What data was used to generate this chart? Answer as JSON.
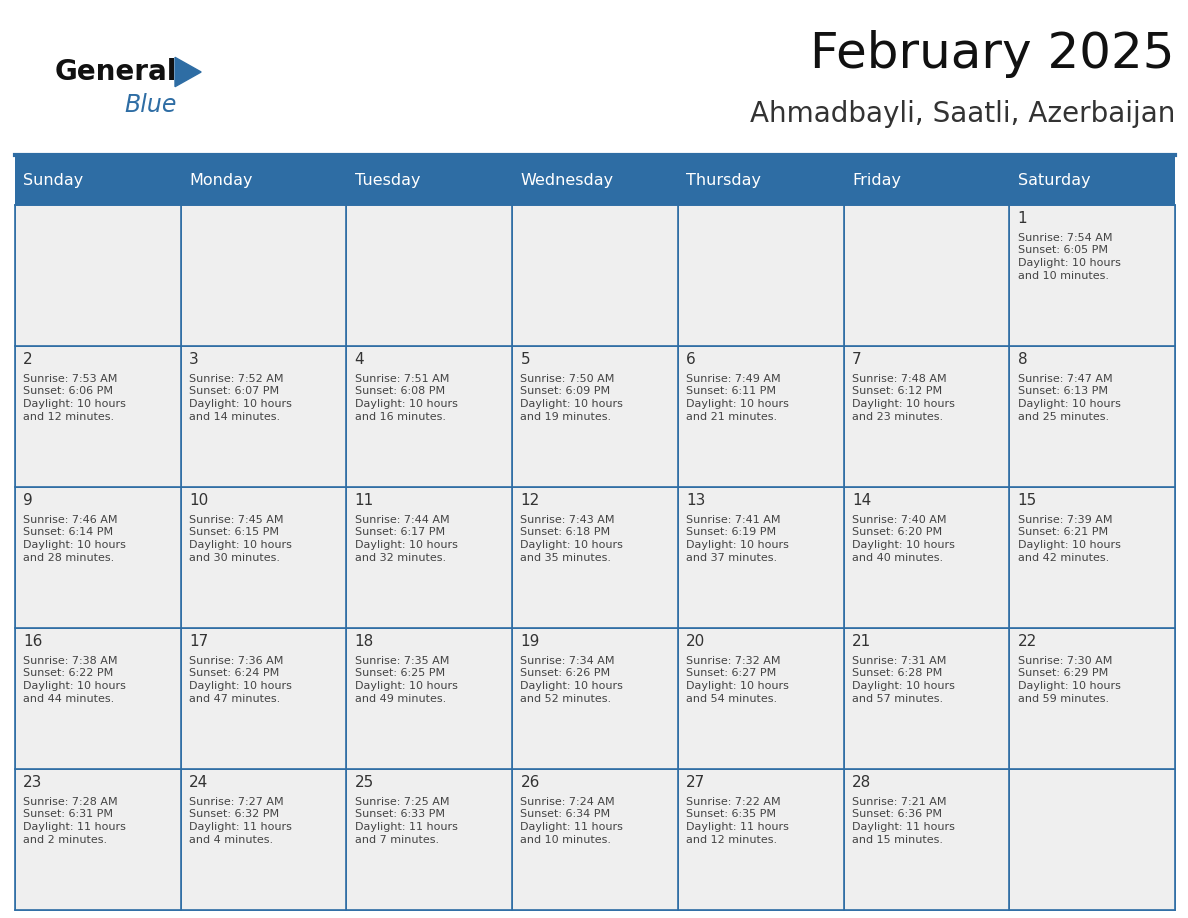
{
  "title": "February 2025",
  "subtitle": "Ahmadbayli, Saatli, Azerbaijan",
  "days_of_week": [
    "Sunday",
    "Monday",
    "Tuesday",
    "Wednesday",
    "Thursday",
    "Friday",
    "Saturday"
  ],
  "header_bg": "#2E6DA4",
  "header_text": "#FFFFFF",
  "cell_bg": "#EFEFEF",
  "cell_bg_empty_row1": "#F5F5F5",
  "border_color": "#2E6DA4",
  "day_num_color": "#333333",
  "info_color": "#444444",
  "title_color": "#111111",
  "subtitle_color": "#333333",
  "logo_general_color": "#111111",
  "logo_blue_color": "#2E6DA4",
  "logo_triangle_color": "#2E6DA4",
  "weeks": [
    [
      {
        "day": null,
        "info": ""
      },
      {
        "day": null,
        "info": ""
      },
      {
        "day": null,
        "info": ""
      },
      {
        "day": null,
        "info": ""
      },
      {
        "day": null,
        "info": ""
      },
      {
        "day": null,
        "info": ""
      },
      {
        "day": 1,
        "info": "Sunrise: 7:54 AM\nSunset: 6:05 PM\nDaylight: 10 hours\nand 10 minutes."
      }
    ],
    [
      {
        "day": 2,
        "info": "Sunrise: 7:53 AM\nSunset: 6:06 PM\nDaylight: 10 hours\nand 12 minutes."
      },
      {
        "day": 3,
        "info": "Sunrise: 7:52 AM\nSunset: 6:07 PM\nDaylight: 10 hours\nand 14 minutes."
      },
      {
        "day": 4,
        "info": "Sunrise: 7:51 AM\nSunset: 6:08 PM\nDaylight: 10 hours\nand 16 minutes."
      },
      {
        "day": 5,
        "info": "Sunrise: 7:50 AM\nSunset: 6:09 PM\nDaylight: 10 hours\nand 19 minutes."
      },
      {
        "day": 6,
        "info": "Sunrise: 7:49 AM\nSunset: 6:11 PM\nDaylight: 10 hours\nand 21 minutes."
      },
      {
        "day": 7,
        "info": "Sunrise: 7:48 AM\nSunset: 6:12 PM\nDaylight: 10 hours\nand 23 minutes."
      },
      {
        "day": 8,
        "info": "Sunrise: 7:47 AM\nSunset: 6:13 PM\nDaylight: 10 hours\nand 25 minutes."
      }
    ],
    [
      {
        "day": 9,
        "info": "Sunrise: 7:46 AM\nSunset: 6:14 PM\nDaylight: 10 hours\nand 28 minutes."
      },
      {
        "day": 10,
        "info": "Sunrise: 7:45 AM\nSunset: 6:15 PM\nDaylight: 10 hours\nand 30 minutes."
      },
      {
        "day": 11,
        "info": "Sunrise: 7:44 AM\nSunset: 6:17 PM\nDaylight: 10 hours\nand 32 minutes."
      },
      {
        "day": 12,
        "info": "Sunrise: 7:43 AM\nSunset: 6:18 PM\nDaylight: 10 hours\nand 35 minutes."
      },
      {
        "day": 13,
        "info": "Sunrise: 7:41 AM\nSunset: 6:19 PM\nDaylight: 10 hours\nand 37 minutes."
      },
      {
        "day": 14,
        "info": "Sunrise: 7:40 AM\nSunset: 6:20 PM\nDaylight: 10 hours\nand 40 minutes."
      },
      {
        "day": 15,
        "info": "Sunrise: 7:39 AM\nSunset: 6:21 PM\nDaylight: 10 hours\nand 42 minutes."
      }
    ],
    [
      {
        "day": 16,
        "info": "Sunrise: 7:38 AM\nSunset: 6:22 PM\nDaylight: 10 hours\nand 44 minutes."
      },
      {
        "day": 17,
        "info": "Sunrise: 7:36 AM\nSunset: 6:24 PM\nDaylight: 10 hours\nand 47 minutes."
      },
      {
        "day": 18,
        "info": "Sunrise: 7:35 AM\nSunset: 6:25 PM\nDaylight: 10 hours\nand 49 minutes."
      },
      {
        "day": 19,
        "info": "Sunrise: 7:34 AM\nSunset: 6:26 PM\nDaylight: 10 hours\nand 52 minutes."
      },
      {
        "day": 20,
        "info": "Sunrise: 7:32 AM\nSunset: 6:27 PM\nDaylight: 10 hours\nand 54 minutes."
      },
      {
        "day": 21,
        "info": "Sunrise: 7:31 AM\nSunset: 6:28 PM\nDaylight: 10 hours\nand 57 minutes."
      },
      {
        "day": 22,
        "info": "Sunrise: 7:30 AM\nSunset: 6:29 PM\nDaylight: 10 hours\nand 59 minutes."
      }
    ],
    [
      {
        "day": 23,
        "info": "Sunrise: 7:28 AM\nSunset: 6:31 PM\nDaylight: 11 hours\nand 2 minutes."
      },
      {
        "day": 24,
        "info": "Sunrise: 7:27 AM\nSunset: 6:32 PM\nDaylight: 11 hours\nand 4 minutes."
      },
      {
        "day": 25,
        "info": "Sunrise: 7:25 AM\nSunset: 6:33 PM\nDaylight: 11 hours\nand 7 minutes."
      },
      {
        "day": 26,
        "info": "Sunrise: 7:24 AM\nSunset: 6:34 PM\nDaylight: 11 hours\nand 10 minutes."
      },
      {
        "day": 27,
        "info": "Sunrise: 7:22 AM\nSunset: 6:35 PM\nDaylight: 11 hours\nand 12 minutes."
      },
      {
        "day": 28,
        "info": "Sunrise: 7:21 AM\nSunset: 6:36 PM\nDaylight: 11 hours\nand 15 minutes."
      },
      {
        "day": null,
        "info": ""
      }
    ]
  ]
}
